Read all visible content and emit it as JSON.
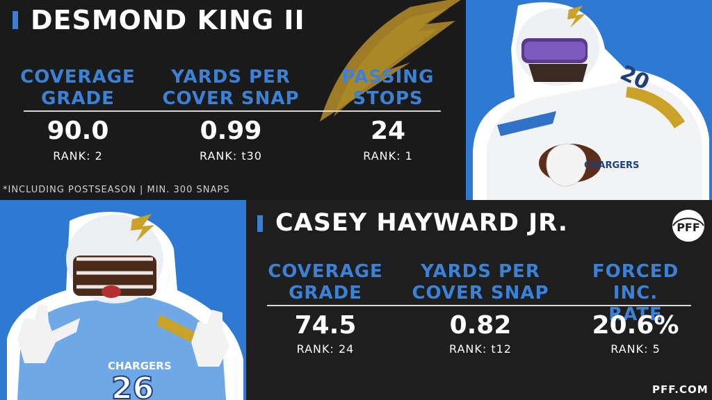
{
  "players": [
    {
      "name": "DESMOND KING II",
      "stats": [
        {
          "label": "COVERAGE\nGRADE",
          "value": "90.0",
          "rank": "RANK: 2"
        },
        {
          "label": "YARDS PER\nCOVER SNAP",
          "value": "0.99",
          "rank": "RANK: t30"
        },
        {
          "label": "PASSING\nSTOPS",
          "value": "24",
          "rank": "RANK: 1"
        }
      ]
    },
    {
      "name": "CASEY HAYWARD JR.",
      "stats": [
        {
          "label": "COVERAGE\nGRADE",
          "value": "74.5",
          "rank": "RANK: 24"
        },
        {
          "label": "YARDS PER\nCOVER SNAP",
          "value": "0.82",
          "rank": "RANK: t12"
        },
        {
          "label": "FORCED INC.\nRATE",
          "value": "20.6%",
          "rank": "RANK: 5"
        }
      ]
    }
  ],
  "footnote": "*INCLUDING POSTSEASON | MIN. 300 SNAPS",
  "logo_text": "PFF",
  "site": "PFF.COM",
  "photo_text": {
    "top_helmet_number": "20",
    "bottom_jersey_wordmark": "CHARGERS",
    "bottom_jersey_number": "26"
  },
  "icons": [
    "chargers-bolt-icon",
    "pff-logo-icon"
  ],
  "colors": {
    "accent": "#3b82d6",
    "panel": "#1a1a1a",
    "photo_bg": "#2e7ad3",
    "bolt": "#c9a227"
  }
}
